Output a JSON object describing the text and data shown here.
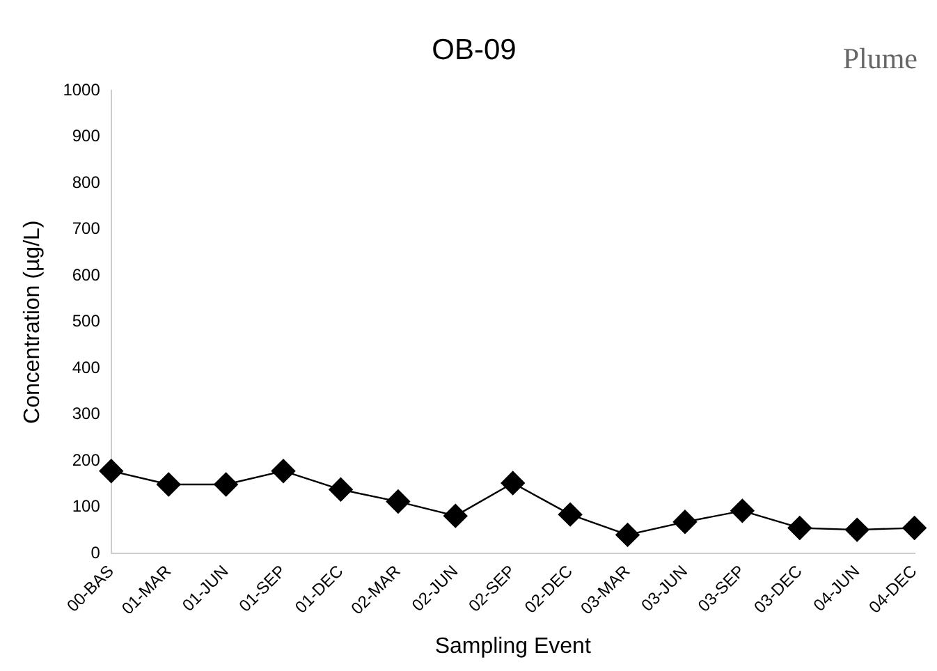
{
  "chart_data": {
    "type": "line",
    "title": "OB-09",
    "annotations": [
      "Plume"
    ],
    "xlabel": "Sampling Event",
    "ylabel": "Concentration (µg/L)",
    "categories": [
      "00-BAS",
      "01-MAR",
      "01-JUN",
      "01-SEP",
      "01-DEC",
      "02-MAR",
      "02-JUN",
      "02-SEP",
      "02-DEC",
      "03-MAR",
      "03-JUN",
      "03-SEP",
      "03-DEC",
      "04-JUN",
      "04-DEC"
    ],
    "series": [
      {
        "color": "#000000",
        "values": [
          178,
          149,
          149,
          178,
          138,
          112,
          81,
          152,
          84,
          40,
          68,
          92,
          55,
          51,
          55
        ]
      }
    ],
    "ylim": [
      0,
      1000
    ],
    "yticks": [
      0,
      100,
      200,
      300,
      400,
      500,
      600,
      700,
      800,
      900,
      1000
    ],
    "grid": false,
    "legend": false,
    "marker": "diamond",
    "line_style": "solid"
  }
}
